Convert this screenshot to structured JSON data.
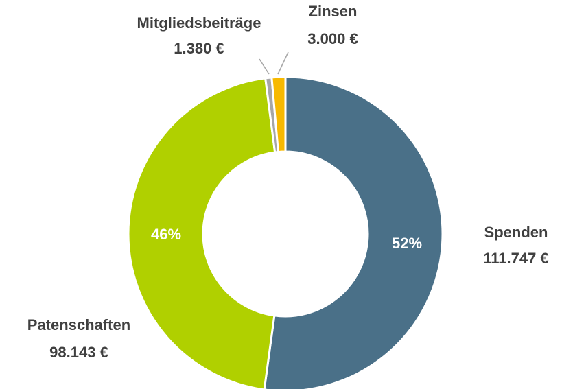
{
  "chart_data": {
    "type": "donut",
    "categories": [
      "Spenden",
      "Patenschaften",
      "Mitgliedsbeiträge",
      "Zinsen"
    ],
    "values": [
      111747,
      98143,
      1380,
      3000
    ],
    "value_labels": [
      "111.747 €",
      "98.143 €",
      "1.380 €",
      "3.000 €"
    ],
    "percent_labels": [
      "52%",
      "46%",
      null,
      null
    ],
    "colors": [
      "#4a7088",
      "#b0d000",
      "#a6a6a6",
      "#f7b900"
    ]
  }
}
